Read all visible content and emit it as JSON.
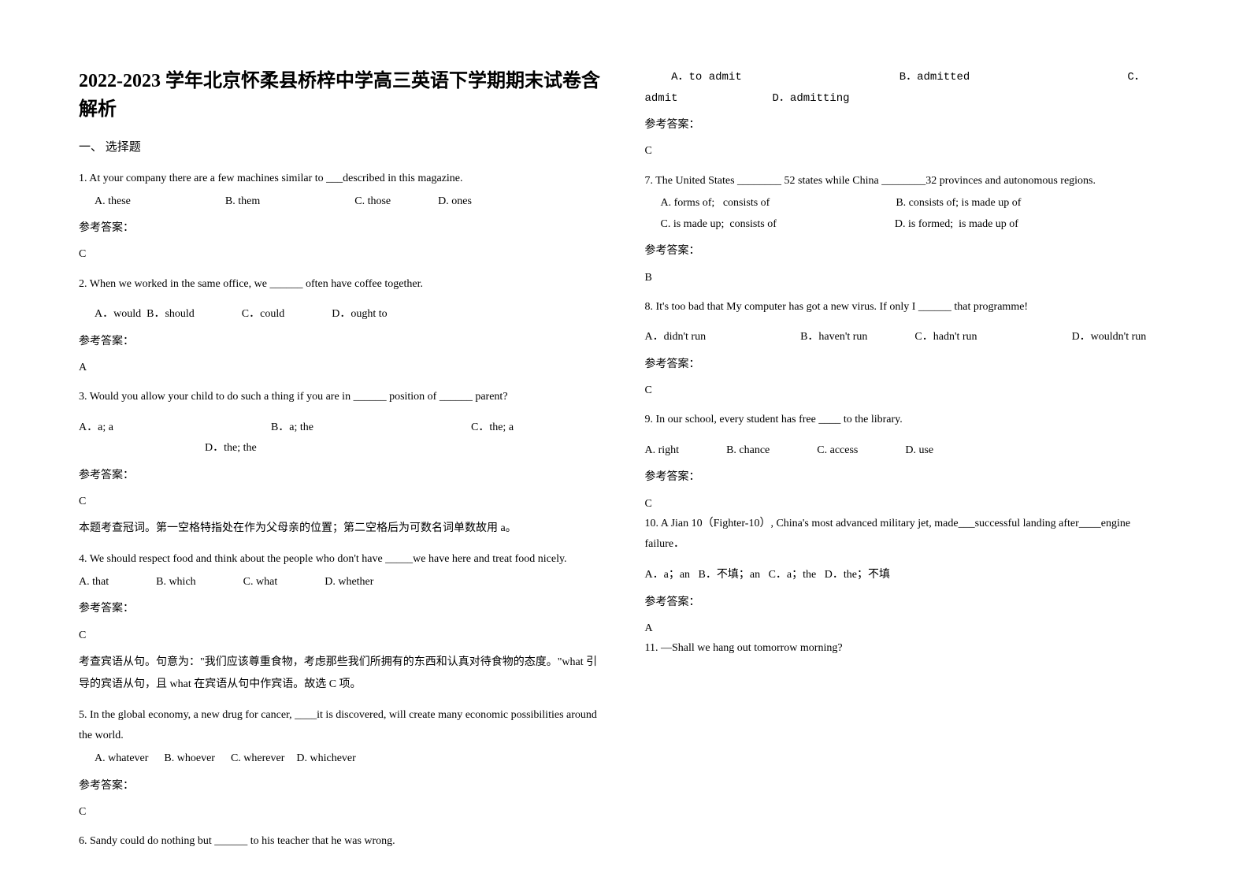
{
  "title": "2022-2023 学年北京怀柔县桥梓中学高三英语下学期期末试卷含解析",
  "section_header": "一、 选择题",
  "answer_label": "参考答案：",
  "questions": [
    {
      "number": "1.",
      "text": "At your company there are a few machines similar to ___described in this magazine.",
      "options_html": "A. these<span class='gap-med'></span>B. them<span class='gap-med'></span>C. those<span class='gap-small'></span>D. ones",
      "options_indent": true,
      "answer": "C"
    },
    {
      "number": "2.",
      "text": "When we worked in the same office, we ______ often have coffee together.",
      "options_html": "A．would&nbsp;&nbsp;B．should<span class='gap-small'></span>C．could<span class='gap-small'></span>D．ought to",
      "options_indent": true,
      "options_gap_above": true,
      "answer": "A"
    },
    {
      "number": "3.",
      "text": "Would you allow your child to do such a thing if you are in ______ position of ______ parent?",
      "options_html": "A．a; a<span class='gap-xlarge'></span>B．a; the<span class='gap-xlarge'></span>C．the; a<span class='gap-large'></span>D．the; the",
      "options_gap_above": true,
      "answer": "C",
      "explanation": "本题考查冠词。第一空格特指处在作为父母亲的位置；第二空格后为可数名词单数故用 a。"
    },
    {
      "number": "4.",
      "text": "We should respect food and think about the people who don't have _____we have here and treat food nicely.",
      "options_html": "A. that<span class='gap-small'></span>B. which<span class='gap-small'></span>C. what<span class='gap-small'></span>D. whether",
      "answer": "C",
      "explanation": "考查宾语从句。句意为：\"我们应该尊重食物，考虑那些我们所拥有的东西和认真对待食物的态度。\"what 引导的宾语从句，且 what 在宾语从句中作宾语。故选 C 项。"
    },
    {
      "number": "5.",
      "text": "In the global economy, a new drug for cancer, ____it is discovered, will create many economic possibilities around the world.",
      "options_html": "A. whatever<span style='display:inline-block;width:20px'></span>B. whoever<span style='display:inline-block;width:20px'></span>C. wherever<span style='display:inline-block;width:15px'></span>D. whichever",
      "options_indent": true,
      "answer": "C"
    },
    {
      "number": "6.",
      "text": "Sandy could do nothing but ______ to his teacher that he was wrong.",
      "options_html": "<span class='mono'>&nbsp;&nbsp;&nbsp;&nbsp;A．to admit<span class='gap-xlarge'></span>B．admitted<span class='gap-xlarge'></span>C．admit<span class='gap-med'></span>D．admitting</span>",
      "options_gap_above": true,
      "answer": "C"
    },
    {
      "number": "7.",
      "text": "The United States ________ 52 states while China ________32 provinces and autonomous regions.",
      "options_html": "A. forms of;&nbsp;&nbsp;&nbsp;consists of<span class='gap-large'></span>B. consists of; is made up of<br>C. is made up;&nbsp;&nbsp;consists of<span style='display:inline-block;width:150px'></span>D. is formed;&nbsp;&nbsp;is made up of",
      "options_indent": true,
      "answer": "B"
    },
    {
      "number": "8.",
      "text": "It's too bad that My computer has got a new virus. If only I ______ that programme!",
      "options_html": "A．didn't run<span class='gap-med'></span>B．haven't run<span class='gap-small'></span>C．hadn't run<span class='gap-med'></span>D．wouldn't run",
      "options_gap_above": true,
      "answer": "C"
    },
    {
      "number": "9.",
      "text": "In our school, every student has free ____ to the library.",
      "options_html": "A. right<span class='gap-small'></span>B. chance<span class='gap-small'></span>C. access<span class='gap-small'></span>D. use",
      "options_gap_above": true,
      "answer": "C",
      "tight_after": true
    },
    {
      "number": "10.",
      "text": "A Jian 10（Fighter-10）, China's most advanced military jet, made___successful landing after____engine failure．",
      "options_html": "A．a；an&nbsp;&nbsp;&nbsp;B．不填；an&nbsp;&nbsp;&nbsp;C．a；the&nbsp;&nbsp;&nbsp;D．the；不填",
      "options_gap_above": true,
      "answer": "A",
      "tight_after": true
    },
    {
      "number": "11.",
      "text": "—Shall we hang out tomorrow morning?",
      "no_options": true,
      "no_answer": true
    }
  ]
}
